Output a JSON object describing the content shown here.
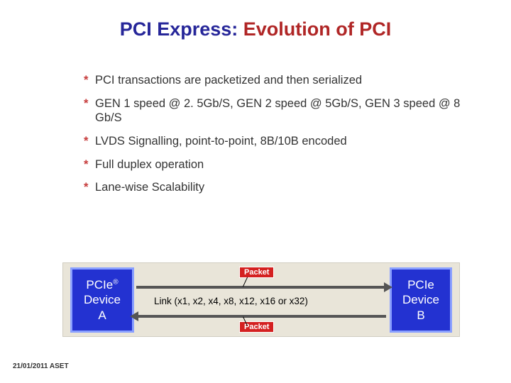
{
  "title": {
    "pre": "PCI Express: ",
    "pre_color": "#262699",
    "em": "Evolution of PCI",
    "em_color": "#b02626"
  },
  "asterisk_color": "#c63a3a",
  "bullets": [
    "PCI transactions are packetized and then serialized",
    "GEN 1 speed @ 2. 5Gb/S, GEN 2 speed @ 5Gb/S, GEN 3 speed @ 8 Gb/S",
    "LVDS Signalling, point-to-point, 8B/10B encoded",
    "Full duplex operation",
    "Lane-wise Scalability"
  ],
  "diagram": {
    "device_a_line1": "PCIe",
    "device_a_reg": "®",
    "device_a_line2": "Device",
    "device_a_line3": "A",
    "device_b_line1": "PCIe",
    "device_b_line2": "Device",
    "device_b_line3": "B",
    "packet_label": "Packet",
    "link_text": "Link (x1, x2, x4, x8, x12, x16 or x32)"
  },
  "footer": "21/01/2011 ASET"
}
